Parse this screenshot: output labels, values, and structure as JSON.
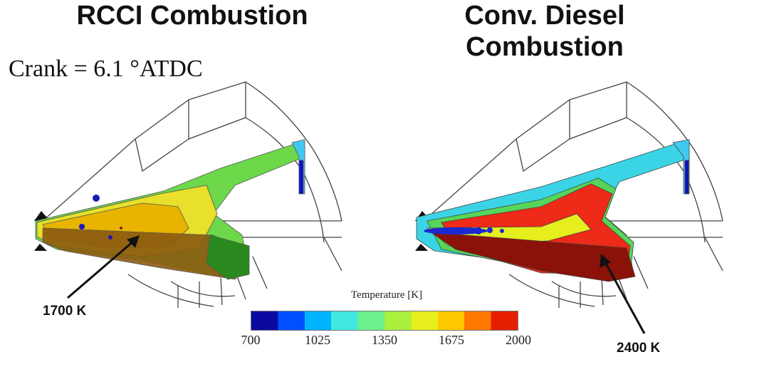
{
  "left_panel": {
    "title": "RCCI Combustion",
    "crank_label": "Crank = 6.1 °ATDC",
    "callout": "1700 K"
  },
  "right_panel": {
    "title_line1": "Conv. Diesel",
    "title_line2": "Combustion",
    "callout": "2400 K"
  },
  "colorbar": {
    "title": "Temperature [K]",
    "min": 700,
    "max": 2000,
    "ticks": [
      "700",
      "1025",
      "1350",
      "1675",
      "2000"
    ],
    "colors": [
      "#0a0aa0",
      "#0050ff",
      "#00b4ff",
      "#40e8e0",
      "#6cf08c",
      "#aaf03c",
      "#e6ee1e",
      "#ffc800",
      "#ff7800",
      "#e61e00"
    ]
  },
  "colors": {
    "outline": "#444444",
    "rcci_yellow": "#e8e02a",
    "rcci_orange": "#e8b400",
    "rcci_dark": "#8a5a10",
    "diesel_red": "#ee2a18",
    "diesel_darkred": "#8a1208",
    "cyan": "#3ad4e6",
    "green": "#56d658"
  }
}
